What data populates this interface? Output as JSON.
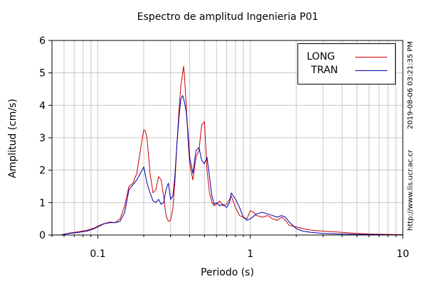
{
  "side_text": {
    "timestamp": "2019-08-06 03:21:35 PM",
    "url": "http://www.lis.ucr.ac.cr"
  },
  "chart_data": {
    "type": "line",
    "title": "Espectro de amplitud Ingenieria P01",
    "xlabel": "Periodo (s)",
    "ylabel": "Amplitud (cm/s)",
    "xscale": "log",
    "xlim": [
      0.05,
      10
    ],
    "ylim": [
      0,
      6
    ],
    "xticks": [
      0.1,
      1,
      10
    ],
    "xtick_labels": [
      "0.1",
      "1",
      "10"
    ],
    "yticks": [
      0,
      1,
      2,
      3,
      4,
      5,
      6
    ],
    "ytick_labels": [
      "0",
      "1",
      "2",
      "3",
      "4",
      "5",
      "6"
    ],
    "grid": true,
    "legend_position": "top-right",
    "series": [
      {
        "name": "LONG",
        "color": "#cc0000",
        "x": [
          0.057,
          0.065,
          0.075,
          0.085,
          0.095,
          0.1,
          0.11,
          0.12,
          0.13,
          0.14,
          0.15,
          0.16,
          0.17,
          0.18,
          0.19,
          0.2,
          0.205,
          0.21,
          0.22,
          0.23,
          0.24,
          0.25,
          0.26,
          0.27,
          0.28,
          0.29,
          0.3,
          0.31,
          0.32,
          0.33,
          0.34,
          0.35,
          0.36,
          0.365,
          0.37,
          0.38,
          0.39,
          0.4,
          0.42,
          0.44,
          0.46,
          0.48,
          0.5,
          0.52,
          0.54,
          0.56,
          0.58,
          0.6,
          0.63,
          0.66,
          0.7,
          0.75,
          0.8,
          0.85,
          0.9,
          0.95,
          1.0,
          1.05,
          1.1,
          1.2,
          1.3,
          1.4,
          1.5,
          1.6,
          1.7,
          1.8,
          2.0,
          2.2,
          2.5,
          3.0,
          3.5,
          4.0,
          5.0,
          6.0,
          8.0,
          10.0
        ],
        "y": [
          0.0,
          0.06,
          0.1,
          0.15,
          0.22,
          0.28,
          0.35,
          0.4,
          0.38,
          0.5,
          0.9,
          1.5,
          1.6,
          1.9,
          2.6,
          3.25,
          3.2,
          3.0,
          1.9,
          1.3,
          1.4,
          1.8,
          1.7,
          1.2,
          0.6,
          0.42,
          0.45,
          0.8,
          1.6,
          2.8,
          3.8,
          4.6,
          5.0,
          5.2,
          4.9,
          4.0,
          3.0,
          2.2,
          1.7,
          2.4,
          2.6,
          3.4,
          3.5,
          2.0,
          1.3,
          1.0,
          0.9,
          0.95,
          1.05,
          0.9,
          0.95,
          1.2,
          0.85,
          0.6,
          0.55,
          0.5,
          0.75,
          0.7,
          0.6,
          0.55,
          0.6,
          0.5,
          0.45,
          0.55,
          0.45,
          0.3,
          0.25,
          0.2,
          0.15,
          0.12,
          0.1,
          0.08,
          0.05,
          0.03,
          0.02,
          0.01
        ]
      },
      {
        "name": "TRAN",
        "color": "#0000aa",
        "x": [
          0.057,
          0.065,
          0.075,
          0.085,
          0.095,
          0.1,
          0.11,
          0.12,
          0.13,
          0.14,
          0.15,
          0.16,
          0.17,
          0.18,
          0.19,
          0.2,
          0.21,
          0.22,
          0.23,
          0.24,
          0.25,
          0.26,
          0.27,
          0.28,
          0.29,
          0.3,
          0.31,
          0.32,
          0.33,
          0.34,
          0.35,
          0.36,
          0.37,
          0.38,
          0.39,
          0.4,
          0.42,
          0.44,
          0.46,
          0.48,
          0.5,
          0.52,
          0.54,
          0.56,
          0.58,
          0.6,
          0.63,
          0.66,
          0.7,
          0.73,
          0.75,
          0.8,
          0.85,
          0.9,
          0.95,
          1.0,
          1.1,
          1.2,
          1.3,
          1.4,
          1.5,
          1.6,
          1.7,
          1.8,
          2.0,
          2.2,
          2.5,
          3.0,
          4.0,
          5.0,
          7.0,
          10.0
        ],
        "y": [
          0.0,
          0.05,
          0.08,
          0.12,
          0.2,
          0.25,
          0.35,
          0.38,
          0.38,
          0.42,
          0.7,
          1.4,
          1.55,
          1.7,
          1.9,
          2.1,
          1.6,
          1.3,
          1.05,
          1.0,
          1.1,
          0.95,
          1.0,
          1.4,
          1.6,
          1.1,
          1.2,
          1.8,
          2.8,
          3.6,
          4.2,
          4.3,
          4.1,
          3.8,
          3.2,
          2.4,
          1.9,
          2.6,
          2.7,
          2.3,
          2.2,
          2.4,
          1.8,
          1.2,
          0.95,
          1.0,
          0.9,
          0.95,
          0.85,
          1.0,
          1.3,
          1.1,
          0.85,
          0.55,
          0.45,
          0.5,
          0.65,
          0.7,
          0.65,
          0.6,
          0.55,
          0.6,
          0.55,
          0.4,
          0.2,
          0.12,
          0.08,
          0.05,
          0.03,
          0.02,
          0.01,
          0.0
        ]
      }
    ]
  }
}
